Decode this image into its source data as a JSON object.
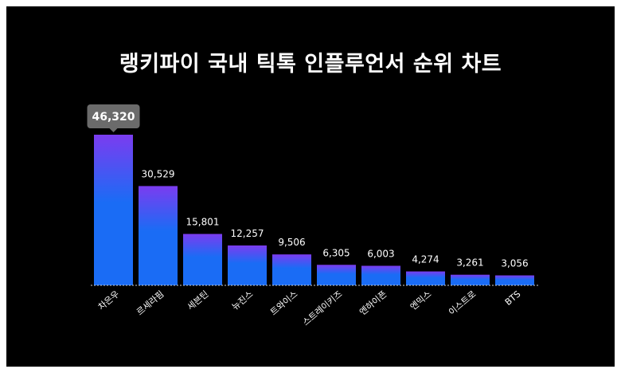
{
  "chart_data": {
    "type": "bar",
    "title": "랭키파이 국내 틱톡 인플루언서 순위 차트",
    "categories": [
      "차은우",
      "르세라핌",
      "세븐틴",
      "뉴진스",
      "트와이스",
      "스트레이키즈",
      "엔하이픈",
      "엔믹스",
      "이스트로",
      "BTS"
    ],
    "values": [
      46320,
      30529,
      15801,
      12257,
      9506,
      6305,
      6003,
      4274,
      3261,
      3056
    ],
    "value_labels": [
      "46,320",
      "30,529",
      "15,801",
      "12,257",
      "9,506",
      "6,305",
      "6,003",
      "4,274",
      "3,261",
      "3,056"
    ],
    "highlighted_index": 0,
    "xlabel": "",
    "ylabel": "",
    "ylim": [
      0,
      46320
    ],
    "grid": false,
    "legend": "none",
    "colors": {
      "background": "#000000",
      "bar_top": "#7b3cf0",
      "bar_bottom": "#1a6cf5",
      "text": "#ffffff",
      "tooltip_bg": "#6b6b6b",
      "baseline": "#d0d0d0"
    }
  }
}
